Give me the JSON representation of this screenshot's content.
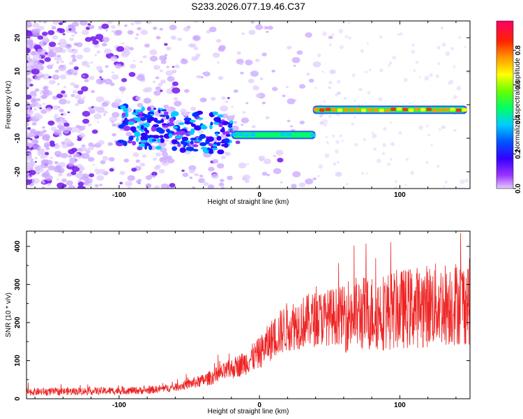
{
  "title": "S233.2026.077.19.46.C37",
  "chart_data": [
    {
      "type": "heatmap",
      "xlabel": "Height of straight line (km)",
      "ylabel": "Frequency (Hz)",
      "xlim": [
        -166,
        150
      ],
      "ylim": [
        -25,
        25
      ],
      "xticks": [
        "-100",
        "0",
        "100"
      ],
      "xtick_values": [
        -100,
        0,
        100
      ],
      "yticks": [
        "-20",
        "-10",
        "0",
        "10",
        "20"
      ],
      "ytick_values": [
        -20,
        -10,
        0,
        10,
        20
      ],
      "colorbar": {
        "label": "Normalized spectral amplitude",
        "ticks": [
          "0.0",
          "0.2",
          "0.4",
          "0.6",
          "0.8"
        ],
        "tick_values": [
          0,
          0.2,
          0.4,
          0.6,
          0.8
        ],
        "range": [
          0,
          0.97
        ],
        "colors": [
          "#e6ccff",
          "#9933ff",
          "#3300ff",
          "#0033ff",
          "#00ccff",
          "#00ff66",
          "#66ff00",
          "#ffff00",
          "#ff9900",
          "#ff3300",
          "#ff0066"
        ]
      },
      "ridge": [
        {
          "x": [
            -100,
            -20
          ],
          "freq": [
            -6,
            -9
          ],
          "note": "scattered"
        },
        {
          "x": [
            -20,
            40
          ],
          "freq": -9,
          "amplitude": 0.5
        },
        {
          "x": [
            38,
            148
          ],
          "freq": -1.5,
          "amplitude": 0.85
        }
      ]
    },
    {
      "type": "line",
      "xlabel": "Height of straight line (km)",
      "ylabel": "SNR (10 * v/v)",
      "xlim": [
        -166,
        150
      ],
      "ylim": [
        0,
        440
      ],
      "xticks": [
        "-100",
        "0",
        "100"
      ],
      "xtick_values": [
        -100,
        0,
        100
      ],
      "yticks": [
        "0",
        "100",
        "200",
        "300",
        "400"
      ],
      "ytick_values": [
        0,
        100,
        200,
        300,
        400
      ],
      "color": "#ee2222",
      "trend_x": [
        -166,
        -120,
        -80,
        -60,
        -40,
        -25,
        -10,
        0,
        10,
        20,
        40,
        60,
        80,
        100,
        120,
        150
      ],
      "trend_y": [
        18,
        20,
        22,
        30,
        48,
        70,
        95,
        120,
        160,
        190,
        210,
        220,
        225,
        235,
        245,
        255
      ]
    }
  ]
}
